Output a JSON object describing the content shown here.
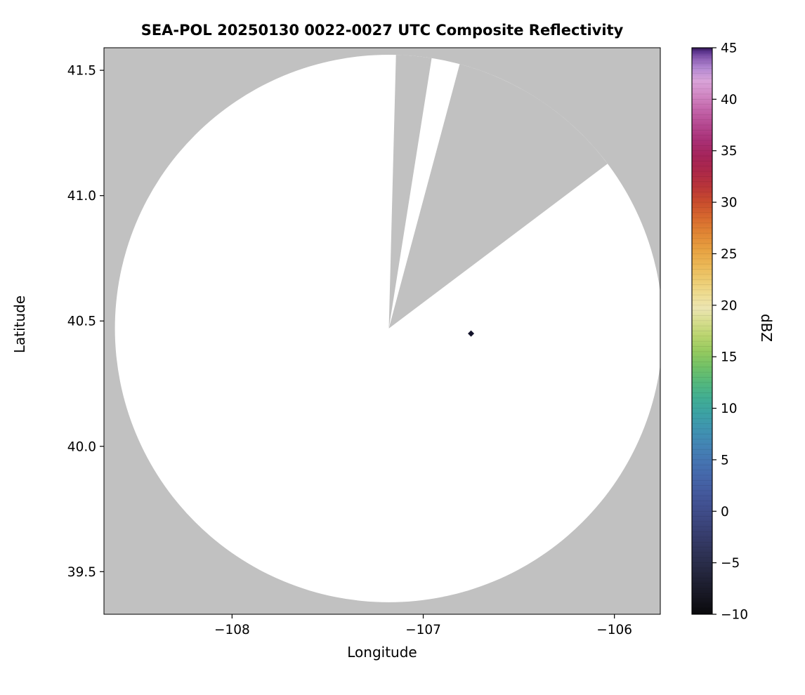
{
  "chart_data": {
    "type": "heatmap",
    "subtype": "radar PPI composite reflectivity map on lat/lon axes",
    "title": "SEA-POL 20250130 0022-0027 UTC Composite Reflectivity",
    "xlabel": "Longitude",
    "ylabel": "Latitude",
    "xlim": [
      -108.67,
      -105.76
    ],
    "ylim": [
      39.33,
      41.59
    ],
    "grid": false,
    "background_color": "#c1c1c1",
    "x_ticks": [
      {
        "v": -108,
        "label": "−108"
      },
      {
        "v": -107,
        "label": "−107"
      },
      {
        "v": -106,
        "label": "−106"
      }
    ],
    "y_ticks": [
      {
        "v": 39.5,
        "label": "39.5"
      },
      {
        "v": 40.0,
        "label": "40.0"
      },
      {
        "v": 40.5,
        "label": "40.5"
      },
      {
        "v": 41.0,
        "label": "41.0"
      },
      {
        "v": 41.5,
        "label": "41.5"
      }
    ],
    "coverage": {
      "description": "white radar coverage disk (no significant echo) over gray no-data background, with two gray blocked/missing azimuth sectors radiating from the radar site",
      "center_lon": -107.18,
      "center_lat": 40.47,
      "radius_deg_lat": 1.092,
      "fill": "#ffffff",
      "blocked_sectors_az_deg": [
        {
          "from": 1.5,
          "to": 9.0
        },
        {
          "from": 15.0,
          "to": 53.0
        }
      ]
    },
    "echoes": [
      {
        "lon": -106.75,
        "lat": 40.45,
        "dbz": -8,
        "color": "#13132b"
      }
    ],
    "colorbar": {
      "label": "dBZ",
      "min": -10,
      "max": 45,
      "tick_step": 5,
      "ticks": [
        {
          "v": 45,
          "label": "45"
        },
        {
          "v": 40,
          "label": "40"
        },
        {
          "v": 35,
          "label": "35"
        },
        {
          "v": 30,
          "label": "30"
        },
        {
          "v": 25,
          "label": "25"
        },
        {
          "v": 20,
          "label": "20"
        },
        {
          "v": 15,
          "label": "15"
        },
        {
          "v": 10,
          "label": "10"
        },
        {
          "v": 5,
          "label": "5"
        },
        {
          "v": 0,
          "label": "0"
        },
        {
          "v": -5,
          "label": "−5"
        },
        {
          "v": -10,
          "label": "−10"
        }
      ],
      "stops": [
        {
          "v": -10,
          "c": "#0a0a0c"
        },
        {
          "v": -8.5,
          "c": "#15151f"
        },
        {
          "v": -7,
          "c": "#1e1f31"
        },
        {
          "v": -5.5,
          "c": "#272a44"
        },
        {
          "v": -4,
          "c": "#2f3357"
        },
        {
          "v": -2.5,
          "c": "#363c6b"
        },
        {
          "v": -1,
          "c": "#3c467e"
        },
        {
          "v": 0.5,
          "c": "#415090"
        },
        {
          "v": 2,
          "c": "#445b9f"
        },
        {
          "v": 3.5,
          "c": "#4568ab"
        },
        {
          "v": 5,
          "c": "#4576b2"
        },
        {
          "v": 6.5,
          "c": "#4385b4"
        },
        {
          "v": 8,
          "c": "#3f94b0"
        },
        {
          "v": 9.5,
          "c": "#3ca2a4"
        },
        {
          "v": 11,
          "c": "#41ae92"
        },
        {
          "v": 12.5,
          "c": "#54b87c"
        },
        {
          "v": 14,
          "c": "#71c167"
        },
        {
          "v": 15.5,
          "c": "#95ca5f"
        },
        {
          "v": 17,
          "c": "#b9d46e"
        },
        {
          "v": 18.5,
          "c": "#d8de90"
        },
        {
          "v": 19.7,
          "c": "#ece5b2"
        },
        {
          "v": 21,
          "c": "#eedd93"
        },
        {
          "v": 22.5,
          "c": "#edca6f"
        },
        {
          "v": 24,
          "c": "#ebb654"
        },
        {
          "v": 25.5,
          "c": "#e79f40"
        },
        {
          "v": 27,
          "c": "#e08534"
        },
        {
          "v": 28.5,
          "c": "#d7692e"
        },
        {
          "v": 30,
          "c": "#c94d2d"
        },
        {
          "v": 31.5,
          "c": "#b93539"
        },
        {
          "v": 33,
          "c": "#ac2849"
        },
        {
          "v": 34.5,
          "c": "#a5245a"
        },
        {
          "v": 36,
          "c": "#a93076"
        },
        {
          "v": 37.5,
          "c": "#b54890"
        },
        {
          "v": 39,
          "c": "#c466ab"
        },
        {
          "v": 40.5,
          "c": "#d28ac5"
        },
        {
          "v": 41.8,
          "c": "#d9a4d9"
        },
        {
          "v": 43,
          "c": "#b489d2"
        },
        {
          "v": 44,
          "c": "#8a5cb2"
        },
        {
          "v": 44.6,
          "c": "#5e3691"
        },
        {
          "v": 45,
          "c": "#2e1450"
        }
      ]
    }
  }
}
